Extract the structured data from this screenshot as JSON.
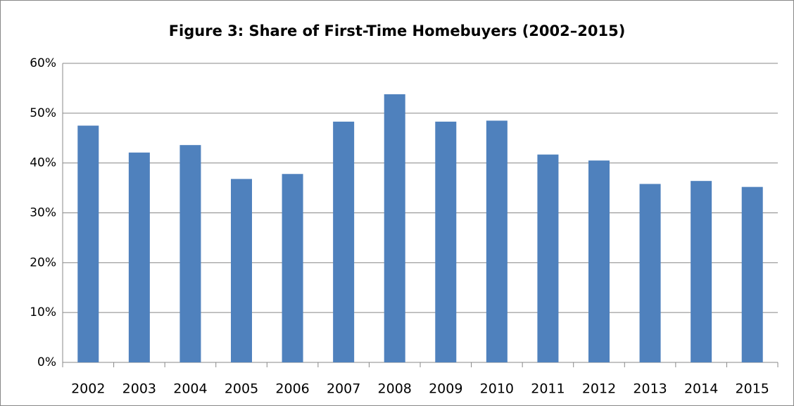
{
  "chart_data": {
    "type": "bar",
    "title": "Figure 3: Share of First-Time Homebuyers (2002–2015)",
    "categories": [
      "2002",
      "2003",
      "2004",
      "2005",
      "2006",
      "2007",
      "2008",
      "2009",
      "2010",
      "2011",
      "2012",
      "2013",
      "2014",
      "2015"
    ],
    "values": [
      47.5,
      42.1,
      43.6,
      36.8,
      37.8,
      48.3,
      53.8,
      48.3,
      48.5,
      41.7,
      40.5,
      35.8,
      36.4,
      35.2
    ],
    "color": "#4f81bd",
    "ylim": [
      0,
      60
    ],
    "yticks": [
      {
        "value": 0,
        "label": "0%"
      },
      {
        "value": 10,
        "label": "10%"
      },
      {
        "value": 20,
        "label": "20%"
      },
      {
        "value": 30,
        "label": "30%"
      },
      {
        "value": 40,
        "label": "40%"
      },
      {
        "value": 50,
        "label": "50%"
      },
      {
        "value": 60,
        "label": "60%"
      }
    ],
    "grid": true
  }
}
